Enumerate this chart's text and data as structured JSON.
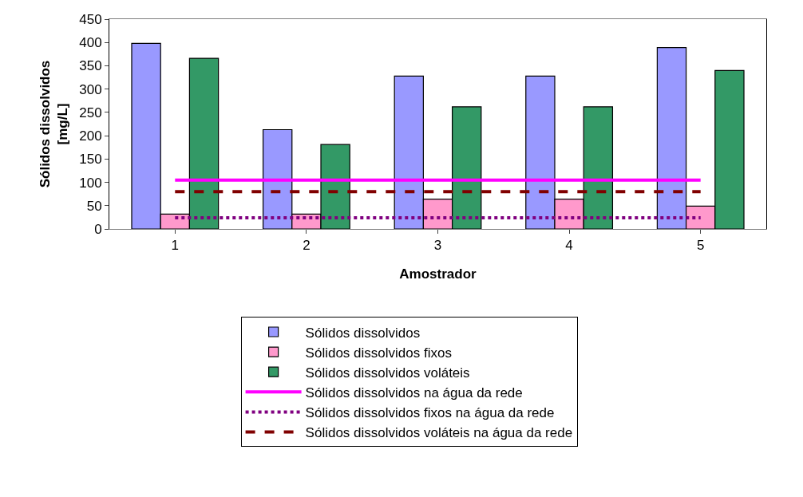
{
  "chart_data": {
    "type": "bar",
    "xlabel": "Amostrador",
    "ylabel": "Sólidos dissolvidos\n[mg/L]",
    "categories": [
      "1",
      "2",
      "3",
      "4",
      "5"
    ],
    "ylim": [
      0,
      450
    ],
    "yticks": [
      0,
      50,
      100,
      150,
      200,
      250,
      300,
      350,
      400,
      450
    ],
    "grid": false,
    "legend": "bottom",
    "marker": "none",
    "series": [
      {
        "name": "Sólidos dissolvidos",
        "color": "#9999ff",
        "values": [
          398,
          213,
          328,
          328,
          389
        ]
      },
      {
        "name": "Sólidos dissolvidos fixos",
        "color": "#ff99cc",
        "values": [
          32,
          32,
          64,
          64,
          49
        ]
      },
      {
        "name": "Sólidos dissolvidos voláteis",
        "color": "#339966",
        "values": [
          366,
          181,
          262,
          262,
          340
        ]
      },
      {
        "name": "Sólidos dissolvidos na água da rede",
        "type": "line",
        "color": "#ff00ff",
        "line_style": "solid",
        "values": [
          105,
          105,
          105,
          105,
          105
        ]
      },
      {
        "name": "Sólidos dissolvidos fixos na água da rede",
        "type": "line",
        "color": "#800080",
        "line_style": "dotted",
        "values": [
          24,
          24,
          24,
          24,
          24
        ]
      },
      {
        "name": "Sólidos dissolvidos voláteis na água da rede",
        "type": "line",
        "color": "#800000",
        "line_style": "dashed",
        "values": [
          80,
          80,
          80,
          80,
          80
        ]
      }
    ]
  }
}
